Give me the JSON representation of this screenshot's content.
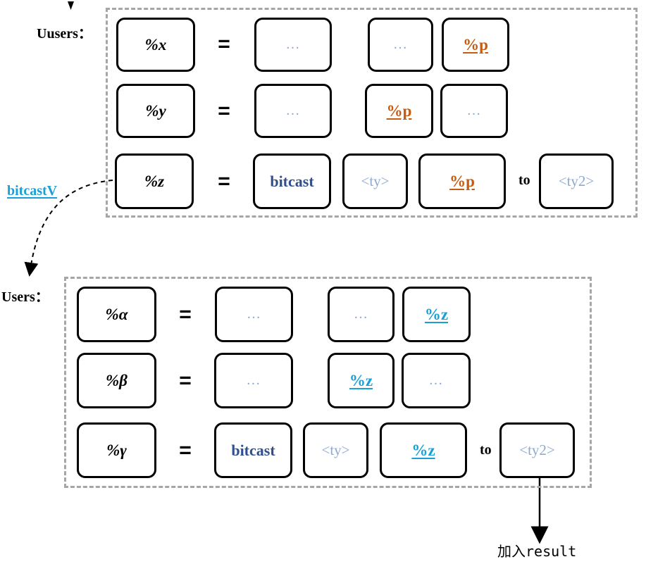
{
  "top": {
    "label": "Uusers：",
    "rows": [
      {
        "name": "%x",
        "eq": "=",
        "a": "…",
        "b": "…",
        "c": "%p"
      },
      {
        "name": "%y",
        "eq": "=",
        "a": "…",
        "b": "%p",
        "c": "…"
      },
      {
        "name": "%z",
        "eq": "=",
        "op": "bitcast",
        "ty": "<ty>",
        "ptr": "%p",
        "to": "to",
        "ty2": "<ty2>"
      }
    ]
  },
  "bottom": {
    "label": "Users：",
    "rows": [
      {
        "name": "%α",
        "eq": "=",
        "a": "…",
        "b": "…",
        "c": "%z"
      },
      {
        "name": "%β",
        "eq": "=",
        "a": "…",
        "b": "%z",
        "c": "…"
      },
      {
        "name": "%γ",
        "eq": "=",
        "op": "bitcast",
        "ty": "<ty>",
        "ptr": "%z",
        "to": "to",
        "ty2": "<ty2>"
      }
    ]
  },
  "edge_label": "bitcastV",
  "result_note": "加入result",
  "colors": {
    "pointer_top": "#c55a11",
    "pointer_bottom": "#1aa0d8",
    "keyword": "#2f4f8f",
    "placeholder": "#8ea9d0",
    "frame": "#a6a6a6"
  }
}
